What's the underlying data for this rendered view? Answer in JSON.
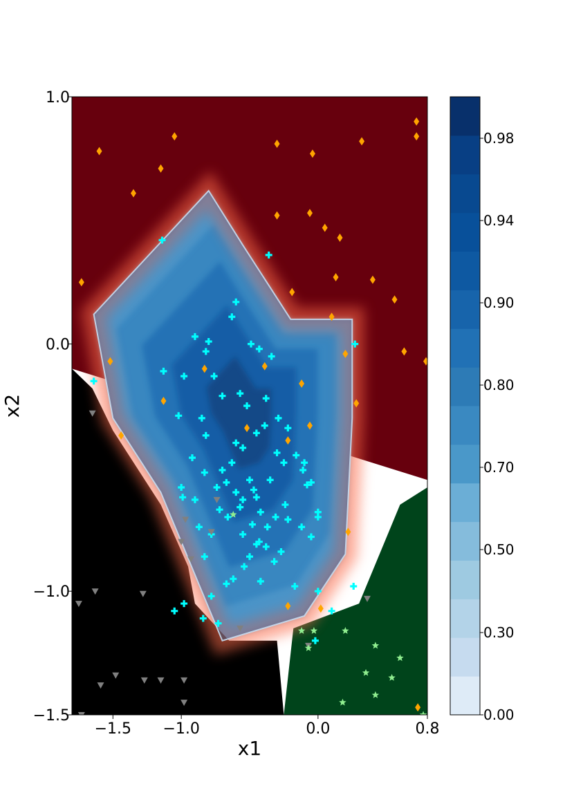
{
  "chart_data": {
    "type": "contour",
    "xlabel": "x1",
    "ylabel": "x2",
    "xlim": [
      -1.8,
      0.8
    ],
    "ylim": [
      -1.5,
      1.0
    ],
    "x_ticks": [
      {
        "value": -1.5,
        "label": "−1.5"
      },
      {
        "value": -1.0,
        "label": "−1.0"
      },
      {
        "value": 0.0,
        "label": "0.0"
      },
      {
        "value": 0.8,
        "label": "0.8"
      }
    ],
    "y_ticks": [
      {
        "value": 1.0,
        "label": "1.0"
      },
      {
        "value": 0.0,
        "label": "0.0"
      },
      {
        "value": -1.0,
        "label": "−1.0"
      },
      {
        "value": -1.5,
        "label": "−1.5"
      }
    ],
    "colorbar": {
      "range": [
        0.0,
        1.0
      ],
      "levels": [
        0.0,
        0.1,
        0.2,
        0.3,
        0.4,
        0.5,
        0.6,
        0.7,
        0.75,
        0.8,
        0.85,
        0.9,
        0.92,
        0.94,
        0.96,
        0.98,
        1.0
      ],
      "ticks": [
        {
          "value": 0.98,
          "label": "0.98"
        },
        {
          "value": 0.94,
          "label": "0.94"
        },
        {
          "value": 0.9,
          "label": "0.90"
        },
        {
          "value": 0.8,
          "label": "0.80"
        },
        {
          "value": 0.7,
          "label": "0.70"
        },
        {
          "value": 0.5,
          "label": "0.50"
        },
        {
          "value": 0.3,
          "label": "0.30"
        },
        {
          "value": 0.0,
          "label": "0.00"
        }
      ]
    },
    "regions": [
      {
        "class": "red",
        "color": "#67000d",
        "polygon": [
          [
            -1.8,
            1.0
          ],
          [
            0.8,
            1.0
          ],
          [
            0.8,
            -0.55
          ],
          [
            -1.8,
            -0.1
          ]
        ]
      },
      {
        "class": "blue",
        "color": "#2171b5",
        "polygon": [
          [
            -1.64,
            0.12
          ],
          [
            -0.8,
            0.62
          ],
          [
            -0.55,
            0.4
          ],
          [
            -0.2,
            0.1
          ],
          [
            0.25,
            0.1
          ],
          [
            0.25,
            -0.3
          ],
          [
            0.2,
            -0.85
          ],
          [
            -0.1,
            -1.1
          ],
          [
            -0.7,
            -1.2
          ],
          [
            -1.15,
            -0.6
          ],
          [
            -1.5,
            -0.3
          ]
        ]
      },
      {
        "class": "gray",
        "color": "#000000",
        "polygon": [
          [
            -1.8,
            -0.1
          ],
          [
            -1.65,
            -0.18
          ],
          [
            -1.5,
            -0.35
          ],
          [
            -1.15,
            -0.65
          ],
          [
            -0.95,
            -0.9
          ],
          [
            -0.9,
            -1.05
          ],
          [
            -0.65,
            -1.2
          ],
          [
            -0.3,
            -1.2
          ],
          [
            -0.25,
            -1.5
          ],
          [
            -1.8,
            -1.5
          ]
        ]
      },
      {
        "class": "green",
        "color": "#00441b",
        "polygon": [
          [
            -0.25,
            -1.5
          ],
          [
            -0.18,
            -1.15
          ],
          [
            0.3,
            -1.05
          ],
          [
            0.6,
            -0.65
          ],
          [
            0.8,
            -0.58
          ],
          [
            0.8,
            -1.5
          ]
        ]
      }
    ],
    "series": [
      {
        "name": "class-red",
        "marker": "diamond",
        "color": "#ffa500",
        "points": [
          [
            -1.6,
            0.78
          ],
          [
            -1.05,
            0.84
          ],
          [
            -1.15,
            0.71
          ],
          [
            -1.35,
            0.61
          ],
          [
            -0.3,
            0.81
          ],
          [
            -0.04,
            0.77
          ],
          [
            0.32,
            0.82
          ],
          [
            0.72,
            0.9
          ],
          [
            0.72,
            0.84
          ],
          [
            -0.3,
            0.52
          ],
          [
            -0.06,
            0.53
          ],
          [
            0.05,
            0.47
          ],
          [
            0.16,
            0.43
          ],
          [
            -0.19,
            0.21
          ],
          [
            0.13,
            0.27
          ],
          [
            0.4,
            0.26
          ],
          [
            0.56,
            0.18
          ],
          [
            -1.73,
            0.25
          ],
          [
            0.1,
            0.11
          ],
          [
            0.63,
            -0.03
          ],
          [
            -0.83,
            -0.1
          ],
          [
            -1.52,
            -0.07
          ],
          [
            -0.39,
            -0.09
          ],
          [
            -0.12,
            -0.16
          ],
          [
            0.2,
            -0.04
          ],
          [
            -1.13,
            -0.23
          ],
          [
            -0.06,
            -0.33
          ],
          [
            0.28,
            -0.24
          ],
          [
            -0.52,
            -0.34
          ],
          [
            -0.22,
            -0.39
          ],
          [
            -1.44,
            -0.37
          ],
          [
            0.22,
            -0.76
          ],
          [
            -0.22,
            -1.06
          ],
          [
            0.02,
            -1.07
          ],
          [
            0.73,
            -1.47
          ],
          [
            0.79,
            -0.07
          ]
        ]
      },
      {
        "name": "class-blue",
        "marker": "plus",
        "color": "#00ffff",
        "points": [
          [
            -1.14,
            0.42
          ],
          [
            -0.36,
            0.36
          ],
          [
            -0.6,
            0.17
          ],
          [
            -0.63,
            0.11
          ],
          [
            -0.9,
            0.03
          ],
          [
            -0.8,
            0.01
          ],
          [
            -0.82,
            -0.03
          ],
          [
            -0.49,
            0.0
          ],
          [
            -0.43,
            -0.02
          ],
          [
            -0.34,
            -0.05
          ],
          [
            -1.13,
            -0.11
          ],
          [
            -0.98,
            -0.13
          ],
          [
            -0.76,
            -0.13
          ],
          [
            -0.57,
            -0.2
          ],
          [
            -0.38,
            -0.22
          ],
          [
            -0.52,
            -0.25
          ],
          [
            -0.29,
            -0.3
          ],
          [
            -0.22,
            -0.34
          ],
          [
            -0.7,
            -0.21
          ],
          [
            -0.85,
            -0.3
          ],
          [
            -1.02,
            -0.29
          ],
          [
            -0.82,
            -0.37
          ],
          [
            -0.6,
            -0.4
          ],
          [
            -0.55,
            -0.42
          ],
          [
            -0.45,
            -0.36
          ],
          [
            -0.39,
            -0.33
          ],
          [
            -0.3,
            -0.44
          ],
          [
            -0.25,
            -0.48
          ],
          [
            -0.16,
            -0.45
          ],
          [
            -0.1,
            -0.48
          ],
          [
            -0.11,
            -0.51
          ],
          [
            -0.05,
            -0.56
          ],
          [
            -0.63,
            -0.48
          ],
          [
            -0.7,
            -0.51
          ],
          [
            -0.74,
            -0.58
          ],
          [
            -0.67,
            -0.56
          ],
          [
            -0.6,
            -0.6
          ],
          [
            -0.55,
            -0.63
          ],
          [
            -0.47,
            -0.59
          ],
          [
            -0.5,
            -0.55
          ],
          [
            -0.45,
            -0.62
          ],
          [
            -0.92,
            -0.46
          ],
          [
            -0.83,
            -0.52
          ],
          [
            -1.0,
            -0.58
          ],
          [
            -0.99,
            -0.62
          ],
          [
            -0.9,
            -0.63
          ],
          [
            -0.72,
            -0.67
          ],
          [
            -0.66,
            -0.7
          ],
          [
            -0.57,
            -0.66
          ],
          [
            -0.42,
            -0.68
          ],
          [
            -0.37,
            -0.74
          ],
          [
            -0.48,
            -0.73
          ],
          [
            -0.55,
            -0.77
          ],
          [
            -0.35,
            -0.55
          ],
          [
            -0.24,
            -0.65
          ],
          [
            -0.31,
            -0.7
          ],
          [
            -0.38,
            -0.82
          ],
          [
            -0.45,
            -0.81
          ],
          [
            -0.5,
            -0.86
          ],
          [
            -0.54,
            -0.9
          ],
          [
            -0.62,
            -0.95
          ],
          [
            -0.67,
            -0.97
          ],
          [
            -0.78,
            -1.02
          ],
          [
            -0.83,
            -0.86
          ],
          [
            -0.87,
            -0.74
          ],
          [
            -0.78,
            -0.77
          ],
          [
            -0.43,
            -0.8
          ],
          [
            -0.32,
            -0.88
          ],
          [
            -0.17,
            -0.98
          ],
          [
            -0.12,
            -0.74
          ],
          [
            -0.05,
            -0.78
          ],
          [
            0.0,
            -0.68
          ],
          [
            -0.08,
            -0.57
          ],
          [
            -0.22,
            -0.71
          ],
          [
            0.0,
            -0.7
          ],
          [
            -0.73,
            -1.13
          ],
          [
            -0.84,
            -1.11
          ],
          [
            -0.42,
            -0.96
          ],
          [
            -0.27,
            -0.84
          ],
          [
            -1.05,
            -1.08
          ],
          [
            -0.98,
            -1.05
          ],
          [
            0.1,
            -1.08
          ],
          [
            0.26,
            -0.98
          ],
          [
            0.27,
            0.0
          ],
          [
            -1.64,
            -0.15
          ],
          [
            -0.02,
            -1.2
          ],
          [
            0.0,
            -1.0
          ]
        ]
      },
      {
        "name": "class-gray",
        "marker": "triangle-down",
        "color": "#808080",
        "points": [
          [
            -1.63,
            -1.0
          ],
          [
            -1.75,
            -1.05
          ],
          [
            -1.28,
            -1.01
          ],
          [
            -0.93,
            -0.87
          ],
          [
            -0.78,
            -0.76
          ],
          [
            -0.74,
            -0.63
          ],
          [
            -0.97,
            -0.71
          ],
          [
            -1.59,
            -1.38
          ],
          [
            -1.48,
            -1.34
          ],
          [
            -1.27,
            -1.36
          ],
          [
            -1.15,
            -1.36
          ],
          [
            -0.98,
            -1.36
          ],
          [
            -0.98,
            -1.45
          ],
          [
            -1.73,
            -1.5
          ],
          [
            -1.0,
            -0.8
          ],
          [
            -0.57,
            -1.15
          ],
          [
            -0.07,
            -1.22
          ],
          [
            0.36,
            -1.03
          ],
          [
            -1.65,
            -0.28
          ]
        ]
      },
      {
        "name": "class-green",
        "marker": "star",
        "color": "#90ee90",
        "points": [
          [
            -0.12,
            -1.16
          ],
          [
            -0.03,
            -1.16
          ],
          [
            0.2,
            -1.16
          ],
          [
            0.35,
            -1.33
          ],
          [
            0.54,
            -1.35
          ],
          [
            0.42,
            -1.42
          ],
          [
            0.18,
            -1.45
          ],
          [
            0.42,
            -1.22
          ],
          [
            -0.07,
            -1.23
          ],
          [
            0.6,
            -1.27
          ],
          [
            0.77,
            -1.5
          ],
          [
            -0.62,
            -0.69
          ]
        ]
      }
    ]
  }
}
